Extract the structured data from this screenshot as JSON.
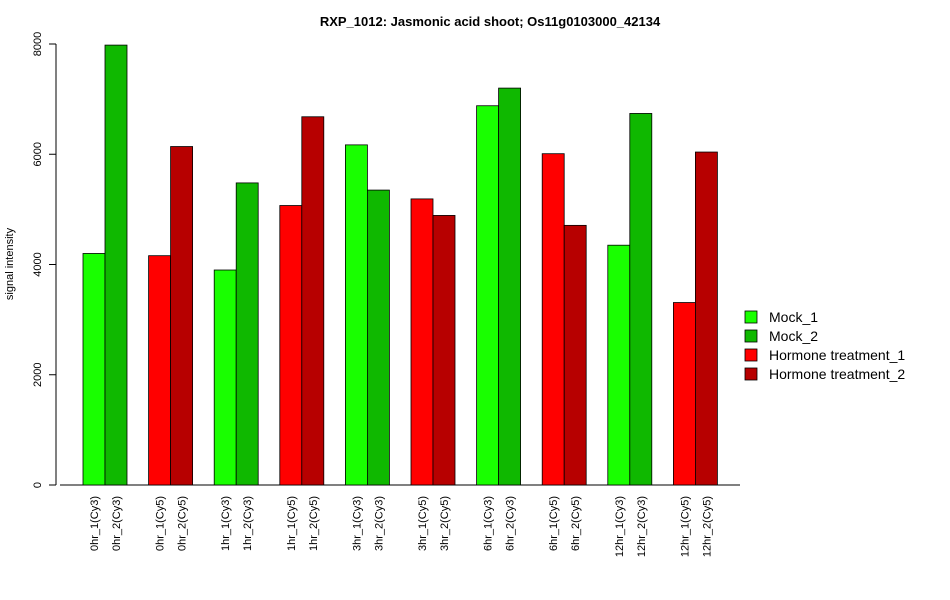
{
  "chart_data": {
    "type": "bar",
    "title": "RXP_1012: Jasmonic acid shoot; Os11g0103000_42134",
    "xlabel": "",
    "ylabel": "signal intensity",
    "ylim": [
      0,
      8000
    ],
    "yticks": [
      0,
      2000,
      4000,
      6000,
      8000
    ],
    "grid": false,
    "legend_position": "right",
    "groups": [
      {
        "labels": [
          "0hr_1(Cy3)",
          "0hr_2(Cy3)"
        ],
        "values": [
          4200,
          7980
        ],
        "series": [
          "Mock_1",
          "Mock_2"
        ]
      },
      {
        "labels": [
          "0hr_1(Cy5)",
          "0hr_2(Cy5)"
        ],
        "values": [
          4160,
          6140
        ],
        "series": [
          "Hormone treatment_1",
          "Hormone treatment_2"
        ]
      },
      {
        "labels": [
          "1hr_1(Cy3)",
          "1hr_2(Cy3)"
        ],
        "values": [
          3900,
          5480
        ],
        "series": [
          "Mock_1",
          "Mock_2"
        ]
      },
      {
        "labels": [
          "1hr_1(Cy5)",
          "1hr_2(Cy5)"
        ],
        "values": [
          5070,
          6680
        ],
        "series": [
          "Hormone treatment_1",
          "Hormone treatment_2"
        ]
      },
      {
        "labels": [
          "3hr_1(Cy3)",
          "3hr_2(Cy3)"
        ],
        "values": [
          6170,
          5350
        ],
        "series": [
          "Mock_1",
          "Mock_2"
        ]
      },
      {
        "labels": [
          "3hr_1(Cy5)",
          "3hr_2(Cy5)"
        ],
        "values": [
          5190,
          4890
        ],
        "series": [
          "Hormone treatment_1",
          "Hormone treatment_2"
        ]
      },
      {
        "labels": [
          "6hr_1(Cy3)",
          "6hr_2(Cy3)"
        ],
        "values": [
          6880,
          7200
        ],
        "series": [
          "Mock_1",
          "Mock_2"
        ]
      },
      {
        "labels": [
          "6hr_1(Cy5)",
          "6hr_2(Cy5)"
        ],
        "values": [
          6010,
          4710
        ],
        "series": [
          "Hormone treatment_1",
          "Hormone treatment_2"
        ]
      },
      {
        "labels": [
          "12hr_1(Cy3)",
          "12hr_2(Cy3)"
        ],
        "values": [
          4350,
          6740
        ],
        "series": [
          "Mock_1",
          "Mock_2"
        ]
      },
      {
        "labels": [
          "12hr_1(Cy5)",
          "12hr_2(Cy5)"
        ],
        "values": [
          3310,
          6040
        ],
        "series": [
          "Hormone treatment_1",
          "Hormone treatment_2"
        ]
      }
    ],
    "series": [
      {
        "name": "Mock_1",
        "color": "#19ff00"
      },
      {
        "name": "Mock_2",
        "color": "#0fb800"
      },
      {
        "name": "Hormone treatment_1",
        "color": "#ff0000"
      },
      {
        "name": "Hormone treatment_2",
        "color": "#b70000"
      }
    ]
  }
}
